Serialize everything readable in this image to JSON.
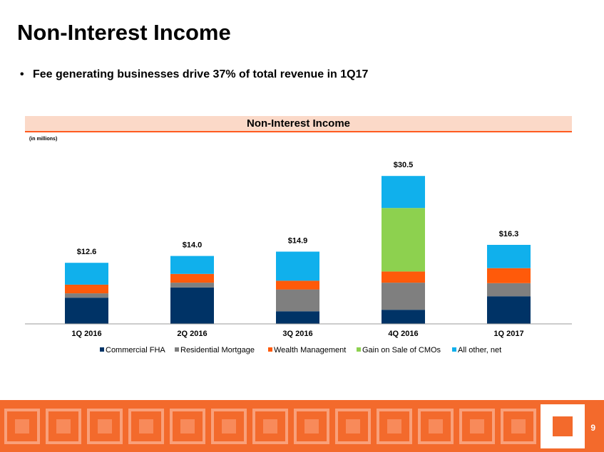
{
  "slide": {
    "title": "Non-Interest Income",
    "bullet": "Fee generating businesses drive 37% of total revenue in 1Q17",
    "chart_header": "Non-Interest Income",
    "units_note": "(in millions)",
    "page_number": "9"
  },
  "colors": {
    "Commercial FHA": "#003366",
    "Residential Mortgage": "#7f7f7f",
    "Wealth Management": "#ff5a0a",
    "Gain on Sale of CMOs": "#8dd14f",
    "All other, net": "#10b0ec",
    "header_bg": "#fbd9c8",
    "accent": "#ff5a1f",
    "footer": "#f36a2c"
  },
  "chart_data": {
    "type": "bar",
    "stacked": true,
    "categories": [
      "1Q 2016",
      "2Q 2016",
      "3Q 2016",
      "4Q 2016",
      "1Q 2017"
    ],
    "series": [
      {
        "name": "Commercial FHA",
        "values": [
          5.4,
          7.5,
          2.6,
          2.9,
          5.7
        ]
      },
      {
        "name": "Residential Mortgage",
        "values": [
          0.9,
          1.0,
          4.5,
          5.6,
          2.7
        ]
      },
      {
        "name": "Wealth Management",
        "values": [
          1.8,
          1.8,
          1.8,
          2.3,
          3.1
        ]
      },
      {
        "name": "Gain on Sale of CMOs",
        "values": [
          0,
          0,
          0,
          13.1,
          0
        ]
      },
      {
        "name": "All other, net",
        "values": [
          4.5,
          3.7,
          6.0,
          6.6,
          4.8
        ]
      }
    ],
    "totals": [
      "$12.6",
      "$14.0",
      "$14.9",
      "$30.5",
      "$16.3"
    ],
    "ylim": [
      0,
      32
    ],
    "grid": false,
    "legend": "bottom"
  }
}
